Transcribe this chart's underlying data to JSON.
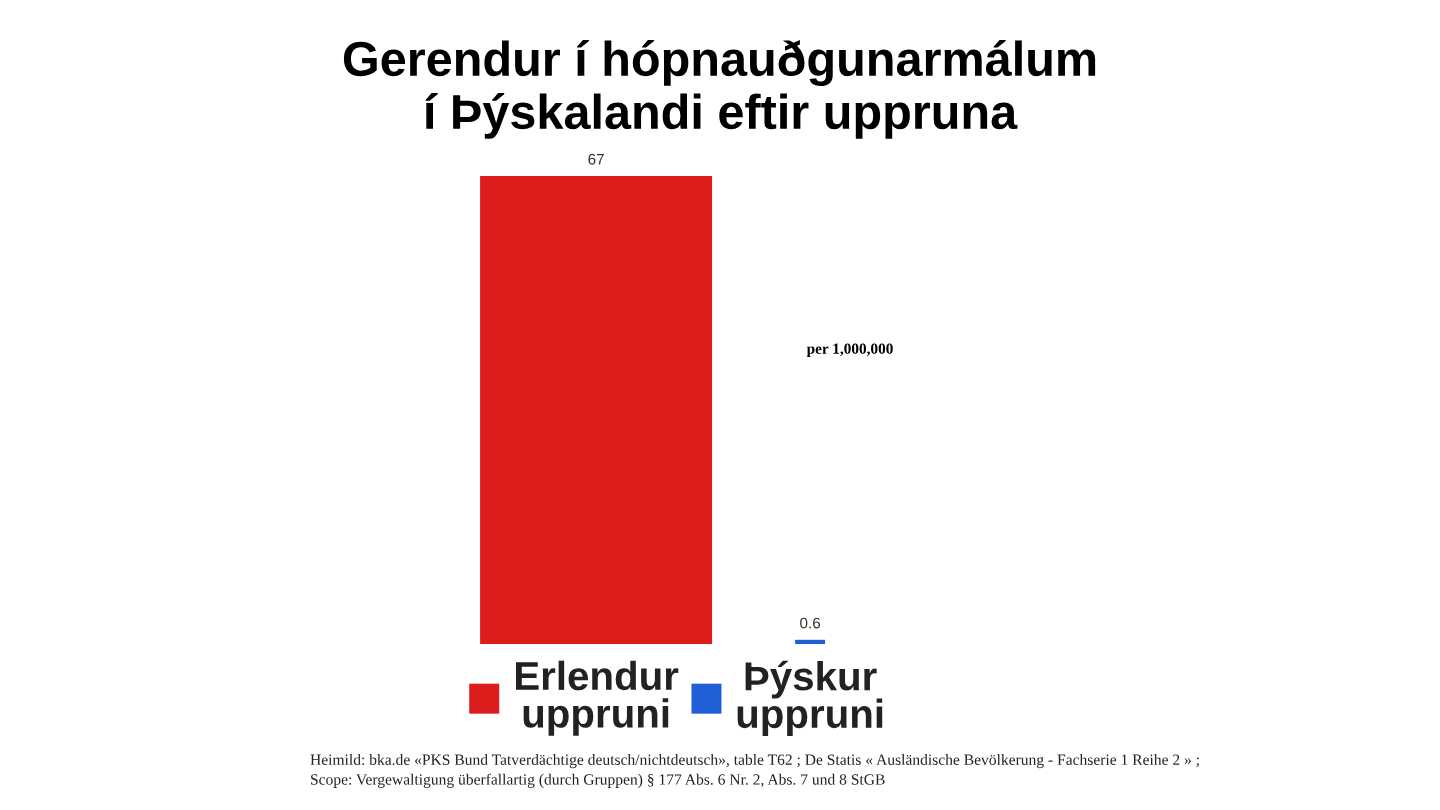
{
  "chart_data": {
    "type": "bar",
    "title": "Gerendur í hópnauðgunarmálum\ní Þýskalandi eftir uppruna",
    "categories": [
      "Erlendur\nuppruni",
      "Þýskur\nuppruni"
    ],
    "values": [
      67,
      0.6
    ],
    "colors": [
      "#dd1c1c",
      "#1f5fd8"
    ],
    "data_labels": true,
    "tick_labels": "x",
    "annotations": [
      "per 1,000,000",
      "Heimild: bka.de «PKS Bund Tatverdächtige deutsch/nichtdeutsch», table T62 ; De Statis « Ausländische Bevölkerung - Fachserie 1 Reihe 2 » ;\nScope: Vergewaltigung überfallartig (durch Gruppen) § 177 Abs. 6 Nr. 2, Abs. 7 und 8 StGB"
    ]
  }
}
